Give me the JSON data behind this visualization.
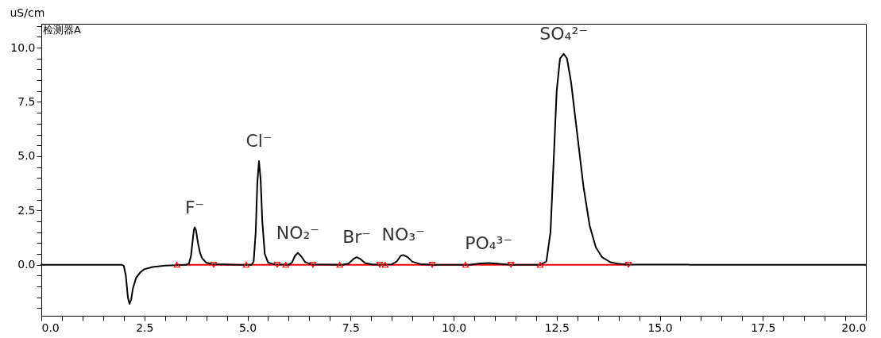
{
  "chart_data": {
    "type": "line",
    "title": "检测器A",
    "ylabel": "uS/cm",
    "xlim": [
      0,
      20
    ],
    "ylim": [
      -2.35,
      11.1
    ],
    "xticks": [
      {
        "value": 0,
        "label": "0.0"
      },
      {
        "value": 0.5,
        "label": null
      },
      {
        "value": 1,
        "label": null
      },
      {
        "value": 1.5,
        "label": null
      },
      {
        "value": 2,
        "label": null
      },
      {
        "value": 2.5,
        "label": "2.5"
      },
      {
        "value": 3,
        "label": null
      },
      {
        "value": 3.5,
        "label": null
      },
      {
        "value": 4,
        "label": null
      },
      {
        "value": 4.5,
        "label": null
      },
      {
        "value": 5,
        "label": "5.0"
      },
      {
        "value": 5.5,
        "label": null
      },
      {
        "value": 6,
        "label": null
      },
      {
        "value": 6.5,
        "label": null
      },
      {
        "value": 7,
        "label": null
      },
      {
        "value": 7.5,
        "label": "7.5"
      },
      {
        "value": 8,
        "label": null
      },
      {
        "value": 8.5,
        "label": null
      },
      {
        "value": 9,
        "label": null
      },
      {
        "value": 9.5,
        "label": null
      },
      {
        "value": 10,
        "label": "10.0"
      },
      {
        "value": 10.5,
        "label": null
      },
      {
        "value": 11,
        "label": null
      },
      {
        "value": 11.5,
        "label": null
      },
      {
        "value": 12,
        "label": null
      },
      {
        "value": 12.5,
        "label": "12.5"
      },
      {
        "value": 13,
        "label": null
      },
      {
        "value": 13.5,
        "label": null
      },
      {
        "value": 14,
        "label": null
      },
      {
        "value": 14.5,
        "label": null
      },
      {
        "value": 15,
        "label": "15.0"
      },
      {
        "value": 15.5,
        "label": null
      },
      {
        "value": 16,
        "label": null
      },
      {
        "value": 16.5,
        "label": null
      },
      {
        "value": 17,
        "label": null
      },
      {
        "value": 17.5,
        "label": "17.5"
      },
      {
        "value": 18,
        "label": null
      },
      {
        "value": 18.5,
        "label": null
      },
      {
        "value": 19,
        "label": null
      },
      {
        "value": 19.5,
        "label": null
      },
      {
        "value": 20,
        "label": "20.0"
      }
    ],
    "yticks": [
      {
        "value": -2,
        "label": null
      },
      {
        "value": -1.5,
        "label": null
      },
      {
        "value": -1,
        "label": null
      },
      {
        "value": -0.5,
        "label": null
      },
      {
        "value": 0,
        "label": "0.0"
      },
      {
        "value": 0.5,
        "label": null
      },
      {
        "value": 1,
        "label": null
      },
      {
        "value": 1.5,
        "label": null
      },
      {
        "value": 2,
        "label": null
      },
      {
        "value": 2.5,
        "label": "2.5"
      },
      {
        "value": 3,
        "label": null
      },
      {
        "value": 3.5,
        "label": null
      },
      {
        "value": 4,
        "label": null
      },
      {
        "value": 4.5,
        "label": null
      },
      {
        "value": 5,
        "label": "5.0"
      },
      {
        "value": 5.5,
        "label": null
      },
      {
        "value": 6,
        "label": null
      },
      {
        "value": 6.5,
        "label": null
      },
      {
        "value": 7,
        "label": null
      },
      {
        "value": 7.5,
        "label": "7.5"
      },
      {
        "value": 8,
        "label": null
      },
      {
        "value": 8.5,
        "label": null
      },
      {
        "value": 9,
        "label": null
      },
      {
        "value": 9.5,
        "label": null
      },
      {
        "value": 10,
        "label": "10.0"
      },
      {
        "value": 10.5,
        "label": null
      },
      {
        "value": 11,
        "label": null
      }
    ],
    "grid": false,
    "series": [
      {
        "type": "line",
        "color": "#ff0000",
        "x": [
          3.29,
          14.24
        ],
        "values": [
          0,
          0
        ]
      },
      {
        "color": "#000000",
        "x": [
          0,
          1,
          1.95,
          2,
          2.05,
          2.1,
          2.14,
          2.18,
          2.22,
          2.3,
          2.4,
          2.5,
          2.7,
          3,
          3.5,
          3.58,
          3.63,
          3.67,
          3.7,
          3.72,
          3.75,
          3.8,
          3.85,
          3.9,
          4,
          4.15,
          4.4,
          4.8,
          5.1,
          5.15,
          5.2,
          5.24,
          5.28,
          5.32,
          5.36,
          5.42,
          5.5,
          5.65,
          6,
          6.08,
          6.15,
          6.22,
          6.3,
          6.4,
          6.55,
          7.3,
          7.45,
          7.58,
          7.65,
          7.73,
          7.85,
          8.05,
          8.5,
          8.62,
          8.72,
          8.78,
          8.88,
          9,
          9.2,
          9.5,
          10.4,
          10.6,
          10.85,
          11.1,
          11.4,
          12.1,
          12.25,
          12.35,
          12.42,
          12.5,
          12.58,
          12.67,
          12.75,
          12.85,
          13,
          13.15,
          13.3,
          13.45,
          13.6,
          13.8,
          14,
          14.25,
          15,
          15.7,
          15.72,
          20
        ],
        "values": [
          0,
          0,
          0,
          -0.05,
          -0.5,
          -1.5,
          -1.8,
          -1.6,
          -1.1,
          -0.6,
          -0.35,
          -0.2,
          -0.1,
          -0.04,
          0,
          0.05,
          0.4,
          1.1,
          1.6,
          1.72,
          1.6,
          1,
          0.55,
          0.3,
          0.1,
          0.02,
          0.02,
          0,
          0,
          0.15,
          1.5,
          3.8,
          4.78,
          3.9,
          2,
          0.5,
          0.1,
          0.02,
          0,
          0.1,
          0.4,
          0.55,
          0.4,
          0.12,
          0.02,
          0,
          0.05,
          0.28,
          0.35,
          0.28,
          0.08,
          0.01,
          0.02,
          0.15,
          0.42,
          0.45,
          0.36,
          0.14,
          0.03,
          0,
          0,
          0.05,
          0.08,
          0.04,
          0,
          0,
          0.15,
          1.5,
          4.5,
          8,
          9.5,
          9.72,
          9.5,
          8.4,
          6,
          3.6,
          1.8,
          0.8,
          0.35,
          0.12,
          0.04,
          0.01,
          0.01,
          0.01,
          0,
          0
        ]
      },
      {
        "type": "scatter",
        "color": "#ff0000",
        "marker": "triangle",
        "x": [
          3.29,
          4.97,
          5.93,
          7.24,
          8.34,
          10.29,
          12.1
        ],
        "values": [
          0,
          0,
          0,
          0,
          0,
          0,
          0
        ]
      },
      {
        "type": "scatter",
        "color": "#ff0000",
        "marker": "triangle",
        "x": [
          4.18,
          5.72,
          6.59,
          8.21,
          9.48,
          11.39,
          14.24
        ],
        "values": [
          0,
          0,
          0,
          0,
          0,
          0,
          0
        ]
      }
    ],
    "annotations": [
      {
        "text": "F⁻",
        "x": 3.72,
        "y": 1.72
      },
      {
        "text": "Cl⁻",
        "x": 5.28,
        "y": 4.78
      },
      {
        "text": "NO₂⁻",
        "x": 6.22,
        "y": 0.55
      },
      {
        "text": "Br⁻",
        "x": 7.65,
        "y": 0.35
      },
      {
        "text": "NO₃⁻",
        "x": 8.78,
        "y": 0.45
      },
      {
        "text": "PO₄³⁻",
        "x": 10.85,
        "y": 0.08
      },
      {
        "text": "SO₄²⁻",
        "x": 12.67,
        "y": 9.72
      }
    ]
  }
}
